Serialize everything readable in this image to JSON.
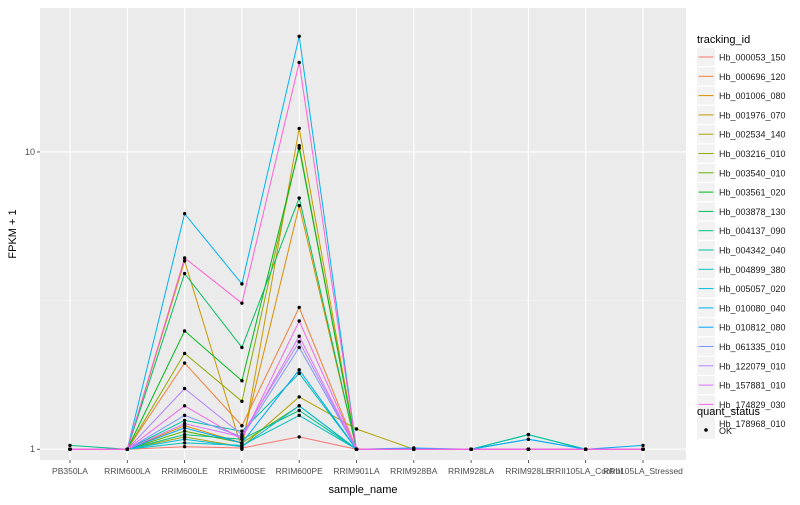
{
  "chart_data": {
    "type": "line",
    "scale": "log10",
    "title": "",
    "xlabel": "sample_name",
    "ylabel": "FPKM + 1",
    "ylim": [
      0.92,
      30.5
    ],
    "y_ticks": [
      {
        "value": 1,
        "label": "1"
      },
      {
        "value": 10,
        "label": "10"
      }
    ],
    "categories": [
      "PB350LA",
      "RRIM600LA",
      "RRIM600LE",
      "RRIM600SE",
      "RRIM600PE",
      "RRIM901LA",
      "RRIM928BA",
      "RRIM928LA",
      "RRIM928LE",
      "RRII105LA_Control",
      "RRII105LA_Stressed"
    ],
    "legend": {
      "title": "tracking_id",
      "placement": "right",
      "status_title": "quant_status",
      "status_label": "OK"
    },
    "series": [
      {
        "name": "Hb_000053_150",
        "color": "#F8766D",
        "values": [
          1,
          1,
          1.02,
          1.01,
          1.1,
          1,
          1,
          1,
          1,
          1,
          1
        ]
      },
      {
        "name": "Hb_000696_120",
        "color": "#EC8239",
        "values": [
          1,
          1,
          1.95,
          1.2,
          3.0,
          1,
          1,
          1,
          1,
          1,
          1
        ]
      },
      {
        "name": "Hb_001006_080",
        "color": "#DB8E00",
        "values": [
          1,
          1,
          1.2,
          1.05,
          6.6,
          1,
          1,
          1,
          1,
          1,
          1
        ]
      },
      {
        "name": "Hb_001976_070",
        "color": "#C79800",
        "values": [
          1,
          1,
          4.3,
          1.0,
          12.0,
          1,
          1,
          1,
          1,
          1,
          1
        ]
      },
      {
        "name": "Hb_002534_140",
        "color": "#AEA200",
        "values": [
          1,
          1,
          1.1,
          1.02,
          1.5,
          1.17,
          1.0,
          1,
          1,
          1,
          1
        ]
      },
      {
        "name": "Hb_003216_010",
        "color": "#8FAA00",
        "values": [
          1,
          1,
          2.1,
          1.45,
          10.5,
          1,
          1,
          1,
          1,
          1,
          1
        ]
      },
      {
        "name": "Hb_003540_010",
        "color": "#64B200",
        "values": [
          1,
          1,
          1.15,
          1.05,
          1.4,
          1,
          1,
          1,
          1,
          1,
          1
        ]
      },
      {
        "name": "Hb_003561_020",
        "color": "#00B81B",
        "values": [
          1,
          1,
          2.5,
          1.7,
          10.3,
          1,
          1,
          1,
          1,
          1,
          1
        ]
      },
      {
        "name": "Hb_003878_130",
        "color": "#00BD5C",
        "values": [
          1,
          1,
          3.9,
          2.2,
          7.0,
          1,
          1,
          1,
          1.12,
          1,
          1
        ]
      },
      {
        "name": "Hb_004137_090",
        "color": "#00C085",
        "values": [
          1.03,
          1,
          1.12,
          1.08,
          1.35,
          1,
          1,
          1,
          1,
          1,
          1
        ]
      },
      {
        "name": "Hb_004342_040",
        "color": "#00C1A7",
        "values": [
          1,
          1,
          1.25,
          1.15,
          1.8,
          1,
          1,
          1,
          1.12,
          1,
          1
        ]
      },
      {
        "name": "Hb_004899_380",
        "color": "#00BFC4",
        "values": [
          1,
          1,
          1.05,
          1.03,
          1.3,
          1,
          1,
          1,
          1,
          1,
          1
        ]
      },
      {
        "name": "Hb_005057_020",
        "color": "#00BADE",
        "values": [
          1,
          1,
          1.08,
          1.02,
          1.4,
          1,
          1,
          1,
          1.08,
          1,
          1
        ]
      },
      {
        "name": "Hb_010080_040",
        "color": "#00B2F3",
        "values": [
          1,
          1,
          6.2,
          3.6,
          24.5,
          1,
          1,
          1,
          1,
          1,
          1
        ]
      },
      {
        "name": "Hb_010812_080",
        "color": "#00A6FF",
        "values": [
          1,
          1,
          1.18,
          1.05,
          1.85,
          1,
          1.01,
          1,
          1.08,
          1,
          1.03
        ]
      },
      {
        "name": "Hb_061335_010",
        "color": "#7B96FF",
        "values": [
          1,
          1,
          1.3,
          1.1,
          2.2,
          1,
          1,
          1,
          1,
          1,
          1
        ]
      },
      {
        "name": "Hb_122079_010",
        "color": "#B385FF",
        "values": [
          1,
          1,
          1.6,
          1.12,
          2.3,
          1,
          1,
          1,
          1,
          1,
          1
        ]
      },
      {
        "name": "Hb_157881_010",
        "color": "#D874FD",
        "values": [
          1,
          1,
          1.22,
          1.1,
          2.4,
          1,
          1,
          1,
          1,
          1,
          1
        ]
      },
      {
        "name": "Hb_174829_030",
        "color": "#EF67EB",
        "values": [
          1,
          1,
          1.4,
          1.08,
          2.7,
          1,
          1,
          1,
          1,
          1,
          1
        ]
      },
      {
        "name": "Hb_178968_010",
        "color": "#FD61D3",
        "values": [
          1,
          1,
          4.4,
          3.1,
          20.0,
          1,
          1,
          1,
          1,
          1,
          1
        ]
      }
    ]
  }
}
